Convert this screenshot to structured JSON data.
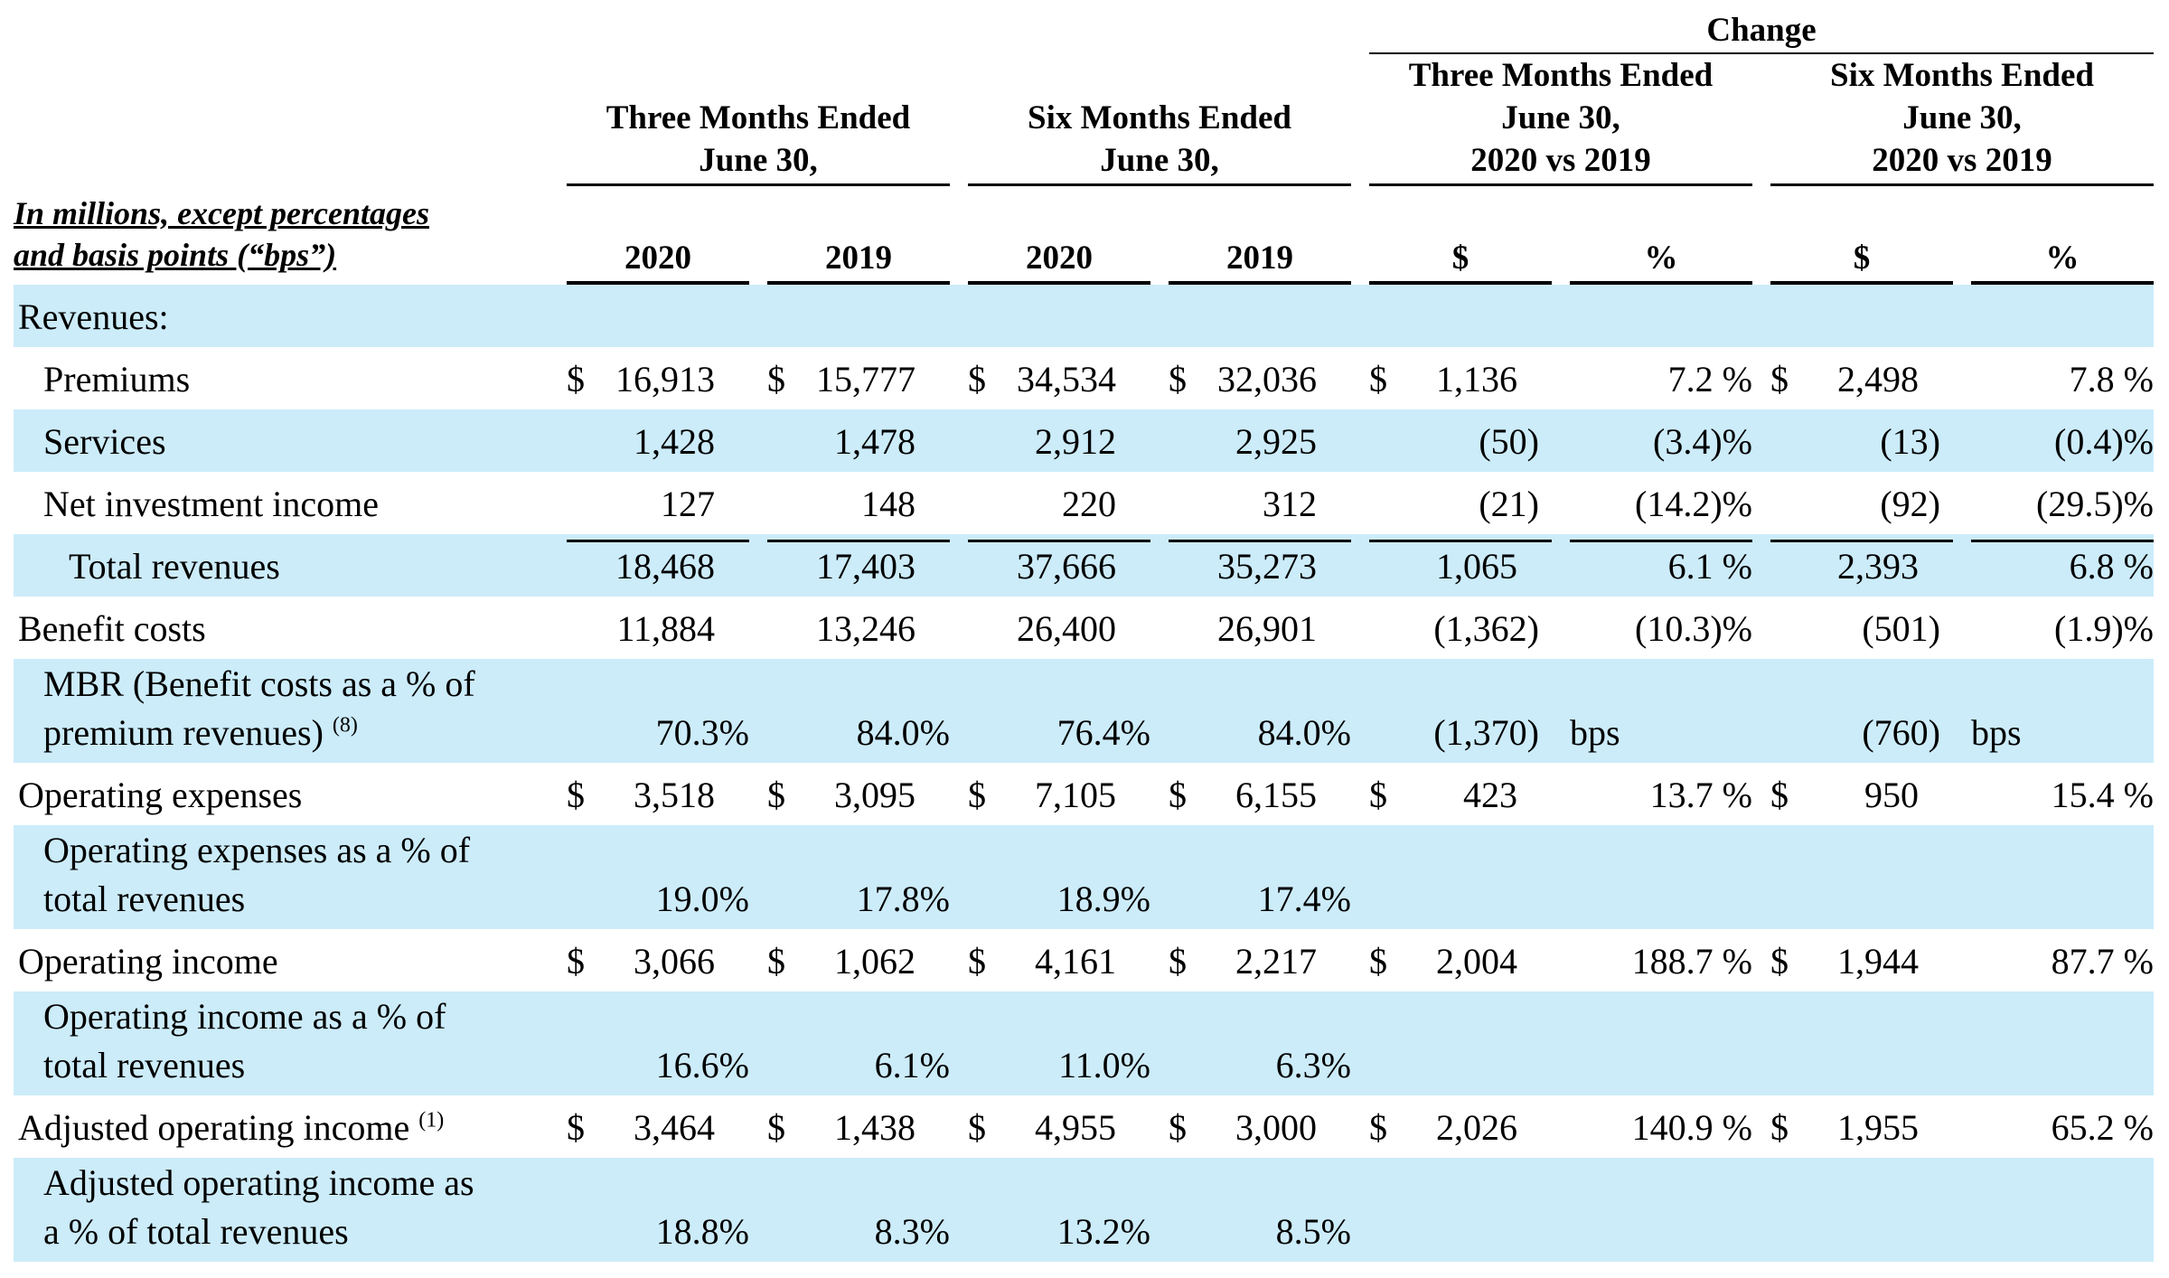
{
  "header": {
    "change": "Change",
    "groups": [
      {
        "lines": [
          "Three Months Ended",
          "June 30,"
        ]
      },
      {
        "lines": [
          "Six Months Ended",
          "June 30,"
        ]
      },
      {
        "lines": [
          "Three Months Ended",
          "June 30,",
          "2020 vs 2019"
        ]
      },
      {
        "lines": [
          "Six Months Ended",
          "June 30,",
          "2020 vs 2019"
        ]
      }
    ],
    "unit_note": [
      "In millions, except percentages",
      "and basis points (“bps”)"
    ],
    "columns": [
      "2020",
      "2019",
      "2020",
      "2019",
      "$",
      "%",
      "$",
      "%"
    ]
  },
  "rows": [
    {
      "label": [
        "Revenues:"
      ]
    },
    {
      "label": [
        "Premiums"
      ],
      "cells": [
        {
          "sym": "$",
          "num": "16,913"
        },
        {
          "sym": "$",
          "num": "15,777"
        },
        {
          "sym": "$",
          "num": "34,534"
        },
        {
          "sym": "$",
          "num": "32,036"
        },
        {
          "sym": "$",
          "num": "1,136"
        },
        "7.2 %",
        {
          "sym": "$",
          "num": "2,498"
        },
        "7.8 %"
      ]
    },
    {
      "label": [
        "Services"
      ],
      "cells": [
        "1,428",
        "1,478",
        "2,912",
        "2,925",
        "(50)",
        "(3.4)%",
        "(13)",
        "(0.4)%"
      ]
    },
    {
      "label": [
        "Net investment income"
      ],
      "cells": [
        "127",
        "148",
        "220",
        "312",
        "(21)",
        "(14.2)%",
        "(92)",
        "(29.5)%"
      ]
    },
    {
      "label": [
        "Total revenues"
      ],
      "cells": [
        "18,468",
        "17,403",
        "37,666",
        "35,273",
        "1,065",
        "6.1 %",
        "2,393",
        "6.8 %"
      ]
    },
    {
      "label": [
        "Benefit costs"
      ],
      "cells": [
        "11,884",
        "13,246",
        "26,400",
        "26,901",
        "(1,362)",
        "(10.3)%",
        "(501)",
        "(1.9)%"
      ]
    },
    {
      "label": [
        "MBR (Benefit costs as a % of",
        "premium revenues)"
      ],
      "note": "(8)",
      "cells": [
        "70.3%",
        "84.0%",
        "76.4%",
        "84.0%",
        "(1,370)",
        {
          "sym": "bps"
        },
        "(760)",
        {
          "sym": "bps"
        }
      ]
    },
    {
      "label": [
        "Operating expenses"
      ],
      "cells": [
        {
          "sym": "$",
          "num": "3,518"
        },
        {
          "sym": "$",
          "num": "3,095"
        },
        {
          "sym": "$",
          "num": "7,105"
        },
        {
          "sym": "$",
          "num": "6,155"
        },
        {
          "sym": "$",
          "num": "423"
        },
        "13.7 %",
        {
          "sym": "$",
          "num": "950"
        },
        "15.4 %"
      ]
    },
    {
      "label": [
        "Operating expenses as a % of",
        "total revenues"
      ],
      "cells": [
        "19.0%",
        "17.8%",
        "18.9%",
        "17.4%"
      ]
    },
    {
      "label": [
        "Operating income"
      ],
      "cells": [
        {
          "sym": "$",
          "num": "3,066"
        },
        {
          "sym": "$",
          "num": "1,062"
        },
        {
          "sym": "$",
          "num": "4,161"
        },
        {
          "sym": "$",
          "num": "2,217"
        },
        {
          "sym": "$",
          "num": "2,004"
        },
        "188.7 %",
        {
          "sym": "$",
          "num": "1,944"
        },
        "87.7 %"
      ]
    },
    {
      "label": [
        "Operating income as a % of",
        "total revenues"
      ],
      "cells": [
        "16.6%",
        "6.1%",
        "11.0%",
        "6.3%"
      ]
    },
    {
      "label": [
        "Adjusted operating income"
      ],
      "note": "(1)",
      "cells": [
        {
          "sym": "$",
          "num": "3,464"
        },
        {
          "sym": "$",
          "num": "1,438"
        },
        {
          "sym": "$",
          "num": "4,955"
        },
        {
          "sym": "$",
          "num": "3,000"
        },
        {
          "sym": "$",
          "num": "2,026"
        },
        "140.9 %",
        {
          "sym": "$",
          "num": "1,955"
        },
        "65.2 %"
      ]
    },
    {
      "label": [
        "Adjusted operating income as",
        "a % of total revenues"
      ],
      "cells": [
        "18.8%",
        "8.3%",
        "13.2%",
        "8.5%"
      ]
    }
  ]
}
